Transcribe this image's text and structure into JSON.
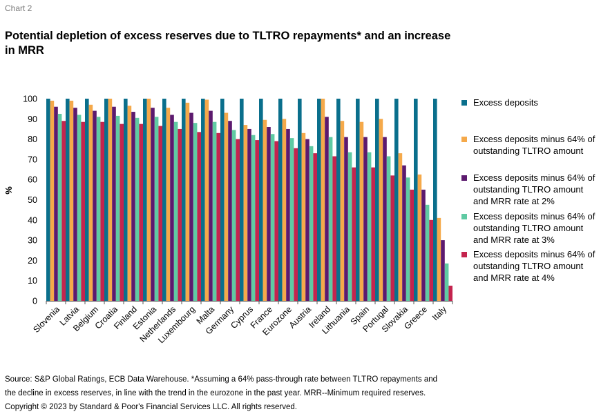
{
  "chart_label": "Chart 2",
  "footer": {
    "line1": "Source: S&P Global Ratings, ECB Data Warehouse. *Assuming a 64% pass-through rate between TLTRO repayments and",
    "line2": "the decline in excess reserves, in line with the trend in the eurozone in the past year. MRR--Minimum required reserves.",
    "line3": "Copyright © 2023 by Standard & Poor's Financial Services LLC. All rights reserved."
  },
  "chart_data": {
    "type": "bar",
    "title": "Potential depletion of excess reserves due to TLTRO repayments* and an increase in MRR",
    "title_lines": [
      "Potential depletion of excess reserves due to TLTRO repayments* and an increase",
      "in MRR"
    ],
    "ylabel": "%",
    "xlabel": "",
    "ylim": [
      0,
      100
    ],
    "yticks": [
      0,
      10,
      20,
      30,
      40,
      50,
      60,
      70,
      80,
      90,
      100
    ],
    "grid": false,
    "legend_position": "right",
    "categories": [
      "Slovenia",
      "Latvia",
      "Belgium",
      "Croatia",
      "Finland",
      "Estonia",
      "Netherlands",
      "Luxembourg",
      "Malta",
      "Germany",
      "Cyprus",
      "France",
      "Eurozone",
      "Austria",
      "Ireland",
      "Lithuania",
      "Spain",
      "Portugal",
      "Slovakia",
      "Greece",
      "Italy"
    ],
    "series": [
      {
        "name": "Excess deposits",
        "label_lines": [
          "Excess deposits"
        ],
        "color": "#0a6f8c",
        "values": [
          100,
          100,
          100,
          100,
          100,
          100,
          100,
          100,
          100,
          100,
          100,
          100,
          100,
          100,
          100,
          100,
          100,
          100,
          100,
          100,
          100
        ]
      },
      {
        "name": "Excess deposits minus 64% of outstanding TLTRO amount",
        "label_lines": [
          "Excess deposits minus 64% of",
          "outstanding TLTRO amount"
        ],
        "color": "#f5a94a",
        "values": [
          99,
          99,
          97,
          100,
          96.5,
          100,
          95.5,
          98,
          99.5,
          93,
          87,
          89.5,
          90,
          83,
          100,
          89,
          88.5,
          90,
          73,
          62.5,
          41
        ]
      },
      {
        "name": "Excess deposits minus 64% of outstanding TLTRO amount and MRR rate at 2%",
        "label_lines": [
          "Excess deposits minus 64% of",
          "outstanding TLTRO amount",
          "and MRR rate at 2%"
        ],
        "color": "#5c1a6e",
        "values": [
          96,
          95.5,
          94,
          96,
          93.5,
          95.5,
          92,
          93,
          94,
          89,
          85,
          86,
          85,
          80,
          91,
          81,
          81,
          81,
          67,
          55,
          30
        ]
      },
      {
        "name": "Excess deposits minus 64% of outstanding TLTRO amount and MRR rate at 3%",
        "label_lines": [
          "Excess deposits minus 64% of",
          "outstanding TLTRO amount",
          "and MRR rate at 3%"
        ],
        "color": "#5fcaa3",
        "values": [
          92.5,
          92,
          91,
          91.5,
          90.5,
          91,
          88.5,
          88,
          88.5,
          84.5,
          82,
          82.5,
          80.5,
          76.5,
          81,
          73.5,
          73.5,
          71.5,
          61,
          47.5,
          18.5
        ]
      },
      {
        "name": "Excess deposits minus 64% of outstanding TLTRO amount and MRR rate at 4%",
        "label_lines": [
          "Excess deposits minus 64% of",
          "outstanding TLTRO amount",
          "and MRR rate at 4%"
        ],
        "color": "#c4244e",
        "values": [
          89,
          88.5,
          88.5,
          87.5,
          87.5,
          86.5,
          85,
          83.5,
          83,
          80,
          79.5,
          79,
          75.5,
          73,
          71.5,
          66,
          66,
          62,
          55,
          40,
          7.5
        ]
      }
    ]
  }
}
